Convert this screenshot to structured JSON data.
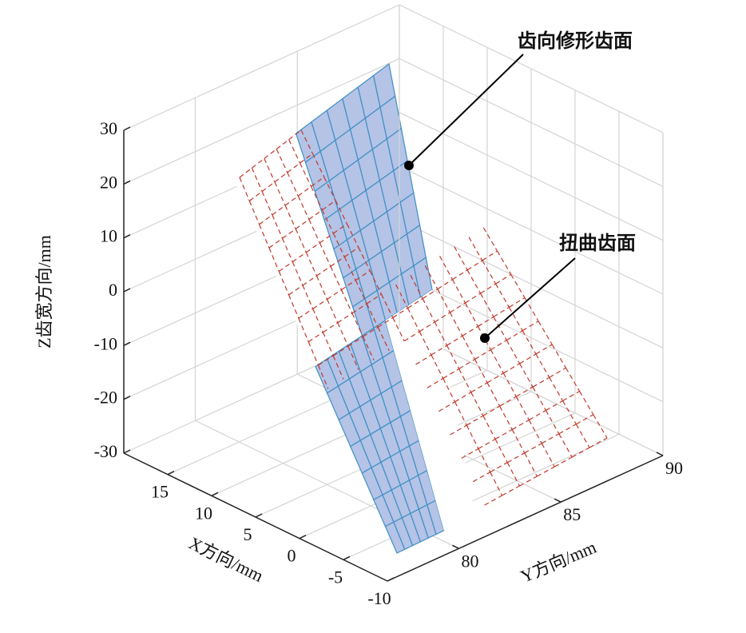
{
  "chart_data": {
    "type": "surface3d",
    "xlabel": "X方向/mm",
    "ylabel": "Y方向/mm",
    "zlabel": "Z齿宽方向/mm",
    "xlim": [
      20,
      -10
    ],
    "ylim": [
      76.5,
      90
    ],
    "zlim": [
      -30,
      30
    ],
    "xticks": [
      15,
      10,
      5,
      0,
      -5,
      -10
    ],
    "yticks": [
      80,
      85,
      90
    ],
    "zticks": [
      -30,
      -20,
      -10,
      0,
      10,
      20,
      30
    ],
    "grid": true,
    "annotations": [
      {
        "text": "齿向修形齿面"
      },
      {
        "text": "扭曲齿面"
      }
    ]
  }
}
